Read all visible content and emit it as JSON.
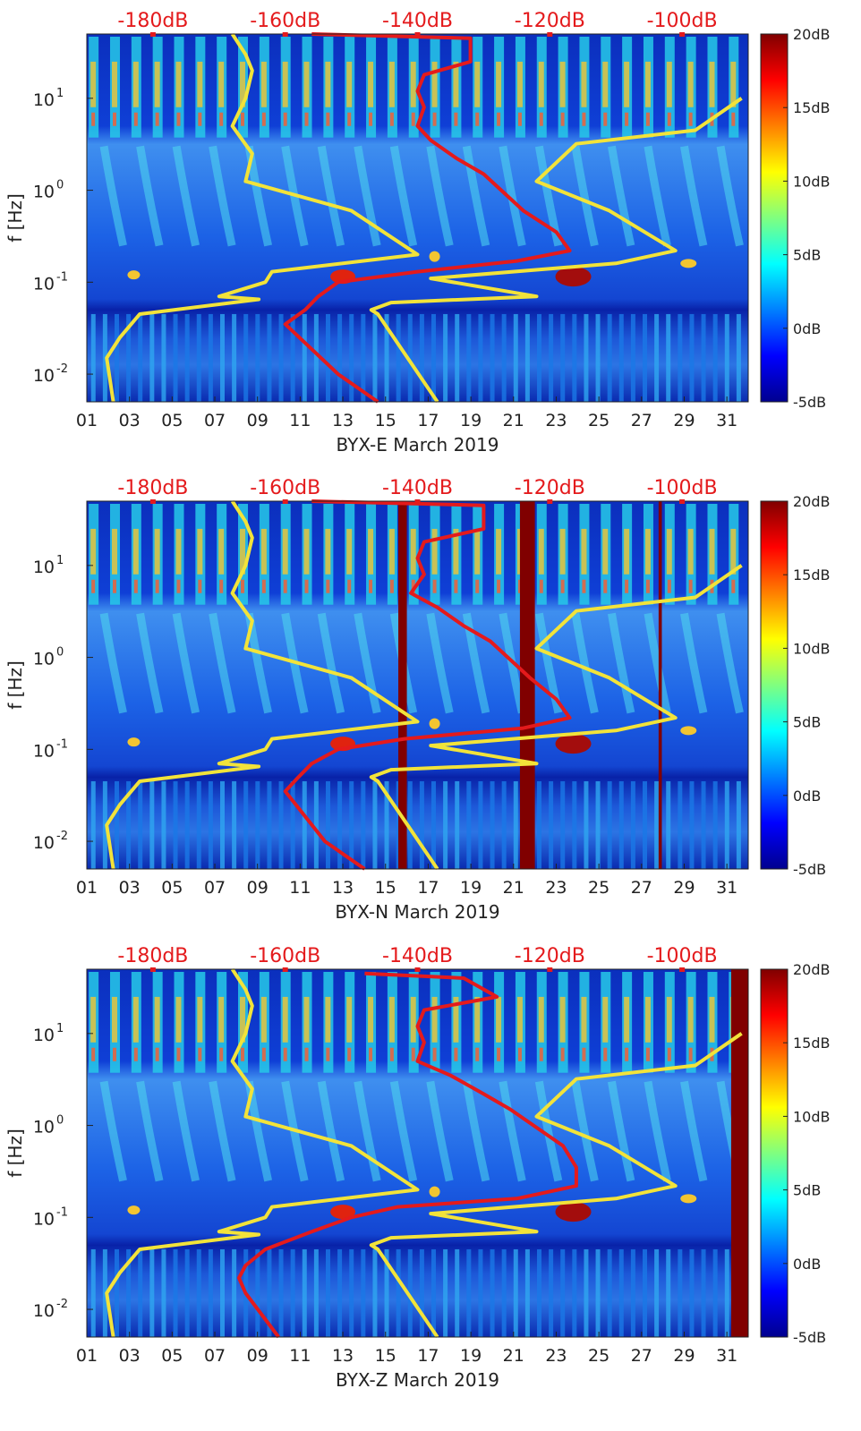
{
  "chart_data": {
    "common": {
      "type": "heatmap",
      "ylabel": "f [Hz]",
      "y_scale": "log",
      "ylim": [
        0.005,
        50
      ],
      "y_ticks": [
        {
          "value": 0.01,
          "base": "10",
          "exp": "-2"
        },
        {
          "value": 0.1,
          "base": "10",
          "exp": "-1"
        },
        {
          "value": 1,
          "base": "10",
          "exp": "0"
        },
        {
          "value": 10,
          "base": "10",
          "exp": "1"
        }
      ],
      "xlim": [
        1,
        32
      ],
      "x_ticks": [
        {
          "value": 1,
          "label": "01"
        },
        {
          "value": 3,
          "label": "03"
        },
        {
          "value": 5,
          "label": "05"
        },
        {
          "value": 7,
          "label": "07"
        },
        {
          "value": 9,
          "label": "09"
        },
        {
          "value": 11,
          "label": "11"
        },
        {
          "value": 13,
          "label": "13"
        },
        {
          "value": 15,
          "label": "15"
        },
        {
          "value": 17,
          "label": "17"
        },
        {
          "value": 19,
          "label": "19"
        },
        {
          "value": 21,
          "label": "21"
        },
        {
          "value": 23,
          "label": "23"
        },
        {
          "value": 25,
          "label": "25"
        },
        {
          "value": 27,
          "label": "27"
        },
        {
          "value": 29,
          "label": "29"
        },
        {
          "value": 31,
          "label": "31"
        }
      ],
      "top_axis_range_db": [
        -190,
        -90
      ],
      "top_ticks": [
        {
          "value": -180,
          "label": "-180dB"
        },
        {
          "value": -160,
          "label": "-160dB"
        },
        {
          "value": -140,
          "label": "-140dB"
        },
        {
          "value": -120,
          "label": "-120dB"
        },
        {
          "value": -100,
          "label": "-100dB"
        }
      ],
      "colorbar": {
        "range": [
          -5,
          20
        ],
        "ticks": [
          {
            "value": 20,
            "label": "20dB"
          },
          {
            "value": 15,
            "label": "15dB"
          },
          {
            "value": 10,
            "label": "10dB"
          },
          {
            "value": 5,
            "label": "5dB"
          },
          {
            "value": 0,
            "label": "0dB"
          },
          {
            "value": -5,
            "label": "-5dB"
          }
        ]
      },
      "series_colors": {
        "noise_models": "#f2e33a",
        "station_median_psd": "#e41a1c"
      },
      "low_noise_model_db": [
        [
          -168,
          50
        ],
        [
          -166,
          30
        ],
        [
          -165,
          20
        ],
        [
          -166,
          10
        ],
        [
          -168,
          5
        ],
        [
          -165,
          2.5
        ],
        [
          -166,
          1.25
        ],
        [
          -150,
          0.6
        ],
        [
          -140,
          0.2
        ],
        [
          -162,
          0.13
        ],
        [
          -163,
          0.1
        ],
        [
          -170,
          0.07
        ],
        [
          -164,
          0.065
        ],
        [
          -182,
          0.045
        ],
        [
          -185,
          0.025
        ],
        [
          -187,
          0.015
        ],
        [
          -186,
          0.005
        ]
      ],
      "high_noise_model_db": [
        [
          -91,
          10
        ],
        [
          -98,
          4.5
        ],
        [
          -116,
          3.2
        ],
        [
          -122,
          1.25
        ],
        [
          -111,
          0.6
        ],
        [
          -101,
          0.22
        ],
        [
          -110,
          0.16
        ],
        [
          -138,
          0.11
        ],
        [
          -122,
          0.07
        ],
        [
          -144,
          0.06
        ],
        [
          -147,
          0.05
        ],
        [
          -146,
          0.045
        ],
        [
          -137,
          0.005
        ]
      ],
      "seismic_background_note": "log-frequency spectrogram, daily pattern"
    },
    "panels": [
      {
        "id": "east",
        "xlabel": "BYX-E March 2019",
        "red_curve_db": [
          [
            -156,
            50
          ],
          [
            -132,
            45
          ],
          [
            -132,
            25
          ],
          [
            -139,
            18
          ],
          [
            -140,
            12
          ],
          [
            -139,
            8
          ],
          [
            -140,
            5
          ],
          [
            -138,
            3.5
          ],
          [
            -134,
            2.2
          ],
          [
            -130,
            1.5
          ],
          [
            -124,
            0.6
          ],
          [
            -119,
            0.35
          ],
          [
            -117,
            0.22
          ],
          [
            -125,
            0.17
          ],
          [
            -140,
            0.13
          ],
          [
            -152,
            0.1
          ],
          [
            -155,
            0.07
          ],
          [
            -157,
            0.05
          ],
          [
            -160,
            0.035
          ],
          [
            -152,
            0.01
          ],
          [
            -146,
            0.005
          ]
        ],
        "red_bands": []
      },
      {
        "id": "north",
        "xlabel": "BYX-N March 2019",
        "red_curve_db": [
          [
            -156,
            50
          ],
          [
            -130,
            45
          ],
          [
            -130,
            25
          ],
          [
            -139,
            18
          ],
          [
            -140,
            12
          ],
          [
            -139,
            8
          ],
          [
            -141,
            5
          ],
          [
            -137,
            3.5
          ],
          [
            -133,
            2.2
          ],
          [
            -129,
            1.5
          ],
          [
            -123,
            0.6
          ],
          [
            -119,
            0.35
          ],
          [
            -117,
            0.22
          ],
          [
            -124,
            0.17
          ],
          [
            -142,
            0.13
          ],
          [
            -152,
            0.1
          ],
          [
            -156,
            0.07
          ],
          [
            -158,
            0.05
          ],
          [
            -160,
            0.035
          ],
          [
            -154,
            0.01
          ],
          [
            -148,
            0.005
          ]
        ],
        "red_bands": [
          {
            "day_start": 15.6,
            "day_end": 16.0
          },
          {
            "day_start": 21.3,
            "day_end": 22.0
          },
          {
            "day_start": 27.8,
            "day_end": 27.95
          }
        ]
      },
      {
        "id": "vertical",
        "xlabel": "BYX-Z March 2019",
        "red_curve_db": [
          [
            -148,
            45
          ],
          [
            -133,
            40
          ],
          [
            -128,
            25
          ],
          [
            -139,
            18
          ],
          [
            -140,
            12
          ],
          [
            -139,
            8
          ],
          [
            -140,
            5
          ],
          [
            -135,
            3.5
          ],
          [
            -130,
            2.2
          ],
          [
            -126,
            1.5
          ],
          [
            -118,
            0.6
          ],
          [
            -116,
            0.35
          ],
          [
            -116,
            0.22
          ],
          [
            -125,
            0.16
          ],
          [
            -143,
            0.13
          ],
          [
            -150,
            0.1
          ],
          [
            -156,
            0.07
          ],
          [
            -163,
            0.045
          ],
          [
            -166,
            0.03
          ],
          [
            -167,
            0.022
          ],
          [
            -166,
            0.015
          ],
          [
            -161,
            0.005
          ]
        ],
        "red_bands": [
          {
            "day_start": 31.2,
            "day_end": 32.0
          }
        ]
      }
    ]
  }
}
